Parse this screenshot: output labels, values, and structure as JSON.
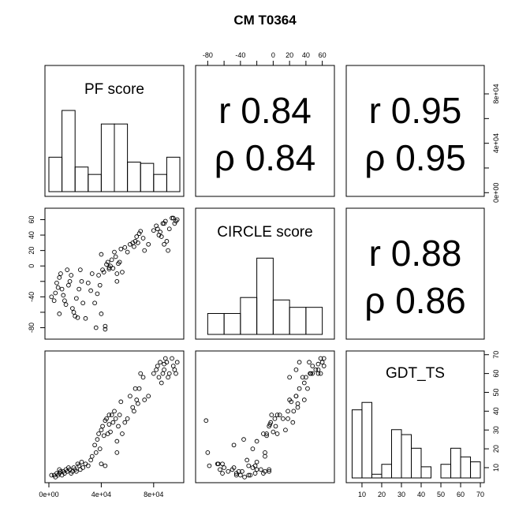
{
  "title": "CM T0364",
  "chart_data": {
    "type": "scatter-matrix",
    "title": "CM T0364",
    "variables": [
      "PF score",
      "CIRCLE score",
      "GDT_TS"
    ],
    "ranges": {
      "PF score": [
        0,
        100000
      ],
      "CIRCLE score": [
        -90,
        70
      ],
      "GDT_TS": [
        4,
        70
      ]
    },
    "axis_ticks": {
      "PF score": {
        "values": [
          0,
          40000,
          80000
        ],
        "labels": [
          "0e+00",
          "4e+04",
          "8e+04"
        ]
      },
      "PF score_right": {
        "values": [
          0,
          20000,
          40000,
          60000,
          80000
        ],
        "labels": [
          "0e+00",
          "",
          "4e+04",
          "",
          "8e+04"
        ]
      },
      "CIRCLE score_top": {
        "values": [
          -80,
          -60,
          -40,
          -20,
          0,
          20,
          40,
          60
        ],
        "labels": [
          "-80",
          "",
          "-40",
          "",
          "0",
          "20",
          "40",
          "60"
        ]
      },
      "CIRCLE score_left": {
        "values": [
          -80,
          -60,
          -40,
          -20,
          0,
          20,
          40,
          60
        ],
        "labels": [
          "-80",
          "",
          "-40",
          "",
          "0",
          "20",
          "40",
          "60"
        ]
      },
      "GDT_TS_right": {
        "values": [
          10,
          20,
          30,
          40,
          50,
          60,
          70
        ],
        "labels": [
          "10",
          "20",
          "30",
          "40",
          "50",
          "60",
          "70"
        ]
      },
      "GDT_TS_bottom": {
        "values": [
          10,
          20,
          30,
          40,
          50,
          60,
          70
        ],
        "labels": [
          "10",
          "20",
          "30",
          "40",
          "50",
          "60",
          "70"
        ]
      }
    },
    "correlations": [
      {
        "pair": [
          "PF score",
          "CIRCLE score"
        ],
        "r_text": "r 0.84",
        "rho_text": "ρ 0.84",
        "r": 0.84,
        "rho": 0.84
      },
      {
        "pair": [
          "PF score",
          "GDT_TS"
        ],
        "r_text": "r 0.95",
        "rho_text": "ρ 0.95",
        "r": 0.95,
        "rho": 0.95
      },
      {
        "pair": [
          "CIRCLE score",
          "GDT_TS"
        ],
        "r_text": "r 0.88",
        "rho_text": "ρ 0.86",
        "r": 0.88,
        "rho": 0.86
      }
    ],
    "histograms": {
      "PF score": {
        "edges": [
          0,
          10000,
          20000,
          30000,
          40000,
          50000,
          60000,
          70000,
          80000,
          90000,
          100000
        ],
        "heights": [
          0.28,
          0.66,
          0.2,
          0.14,
          0.55,
          0.55,
          0.24,
          0.23,
          0.14,
          0.28
        ]
      },
      "CIRCLE score": {
        "edges": [
          -80,
          -60,
          -40,
          -20,
          0,
          20,
          40,
          60
        ],
        "heights": [
          0.17,
          0.17,
          0.3,
          0.62,
          0.28,
          0.22,
          0.22
        ]
      },
      "GDT_TS": {
        "edges": [
          5,
          10,
          15,
          20,
          25,
          30,
          35,
          40,
          45,
          50,
          55,
          60,
          65,
          70
        ],
        "heights": [
          0.55,
          0.61,
          0.03,
          0.11,
          0.39,
          0.35,
          0.24,
          0.09,
          0,
          0.11,
          0.24,
          0.17,
          0.13
        ]
      }
    },
    "points": [
      [
        2000,
        6,
        -40
      ],
      [
        4000,
        6,
        -45
      ],
      [
        5000,
        5,
        -35
      ],
      [
        6000,
        7,
        -22
      ],
      [
        7000,
        6,
        -28
      ],
      [
        8000,
        9,
        -15
      ],
      [
        8000,
        7,
        -62
      ],
      [
        9000,
        8,
        -10
      ],
      [
        10000,
        6,
        -30
      ],
      [
        11000,
        8,
        -38
      ],
      [
        12000,
        7,
        -45
      ],
      [
        13000,
        9,
        -50
      ],
      [
        14000,
        8,
        -5
      ],
      [
        15000,
        10,
        -25
      ],
      [
        16000,
        9,
        -20
      ],
      [
        17000,
        7,
        -12
      ],
      [
        18000,
        8,
        -55
      ],
      [
        19000,
        10,
        -60
      ],
      [
        20000,
        9,
        -65
      ],
      [
        21000,
        8,
        -42
      ],
      [
        22000,
        12,
        -67
      ],
      [
        23000,
        11,
        -30
      ],
      [
        24000,
        9,
        -5
      ],
      [
        25000,
        13,
        -20
      ],
      [
        26000,
        10,
        -48
      ],
      [
        28000,
        12,
        -68
      ],
      [
        30000,
        11,
        -22
      ],
      [
        32000,
        14,
        -32
      ],
      [
        33000,
        16,
        -10
      ],
      [
        35000,
        22,
        -48
      ],
      [
        36000,
        18,
        -80
      ],
      [
        37000,
        25,
        -36
      ],
      [
        38000,
        28,
        -12
      ],
      [
        39000,
        20,
        -25
      ],
      [
        40000,
        12,
        -62
      ],
      [
        40000,
        30,
        15
      ],
      [
        41000,
        32,
        -5
      ],
      [
        42000,
        27,
        -8
      ],
      [
        43000,
        35,
        -82
      ],
      [
        43000,
        11,
        -78
      ],
      [
        44000,
        36,
        2
      ],
      [
        45000,
        28,
        5
      ],
      [
        46000,
        33,
        -4
      ],
      [
        46000,
        38,
        -2
      ],
      [
        47000,
        29,
        0
      ],
      [
        48000,
        38,
        8
      ],
      [
        49000,
        34,
        -3
      ],
      [
        50000,
        40,
        18
      ],
      [
        51000,
        36,
        12
      ],
      [
        52000,
        24,
        -20
      ],
      [
        52000,
        18,
        -10
      ],
      [
        53000,
        32,
        3
      ],
      [
        54000,
        38,
        5
      ],
      [
        55000,
        45,
        22
      ],
      [
        56000,
        28,
        -8
      ],
      [
        58000,
        34,
        24
      ],
      [
        60000,
        36,
        18
      ],
      [
        62000,
        48,
        28
      ],
      [
        64000,
        42,
        30
      ],
      [
        65000,
        40,
        25
      ],
      [
        66000,
        52,
        32
      ],
      [
        67000,
        46,
        38
      ],
      [
        68000,
        44,
        30
      ],
      [
        69000,
        52,
        42
      ],
      [
        70000,
        60,
        45
      ],
      [
        72000,
        58,
        36
      ],
      [
        73000,
        46,
        20
      ],
      [
        76000,
        48,
        28
      ],
      [
        80000,
        60,
        46
      ],
      [
        82000,
        62,
        52
      ],
      [
        83000,
        64,
        48
      ],
      [
        84000,
        58,
        40
      ],
      [
        85000,
        66,
        44
      ],
      [
        86000,
        55,
        38
      ],
      [
        87000,
        60,
        55
      ],
      [
        88000,
        65,
        55
      ],
      [
        88000,
        62,
        28
      ],
      [
        89000,
        68,
        58
      ],
      [
        90000,
        66,
        32
      ],
      [
        91000,
        58,
        20
      ],
      [
        92000,
        60,
        48
      ],
      [
        94000,
        68,
        62
      ],
      [
        95000,
        64,
        62
      ],
      [
        96000,
        62,
        55
      ],
      [
        97000,
        60,
        58
      ],
      [
        98000,
        66,
        60
      ]
    ]
  }
}
